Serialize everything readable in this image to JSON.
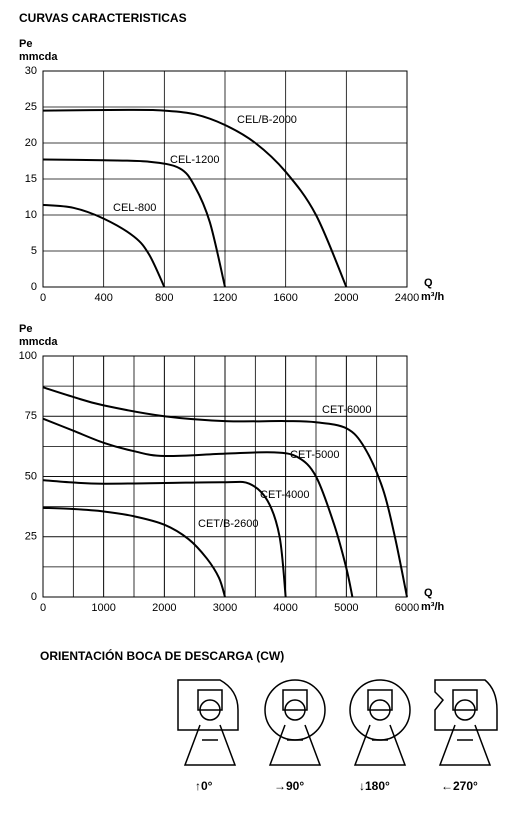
{
  "title": "CURVAS CARACTERISTICAS",
  "chart_data": [
    {
      "type": "line",
      "y_label": "Pe",
      "y_unit": "mmcda",
      "x_label": "Q",
      "x_unit": "m³/h",
      "xlim": [
        0,
        2400
      ],
      "ylim": [
        0,
        30
      ],
      "xticks": [
        0,
        400,
        800,
        1200,
        1600,
        2000,
        2400
      ],
      "yticks": [
        0,
        5,
        10,
        15,
        20,
        25,
        30
      ],
      "grid": true,
      "series": [
        {
          "name": "CEL/B-2000",
          "color": "#000000",
          "x": [
            0,
            600,
            800,
            1000,
            1200,
            1400,
            1600,
            1800,
            2000
          ],
          "values": [
            24.5,
            24.6,
            24.5,
            24,
            22.5,
            20,
            16,
            10,
            0
          ]
        },
        {
          "name": "CEL-1200",
          "color": "#000000",
          "x": [
            0,
            400,
            700,
            900,
            1000,
            1100,
            1200
          ],
          "values": [
            17.7,
            17.6,
            17.4,
            16.5,
            14,
            9,
            0
          ]
        },
        {
          "name": "CEL-800",
          "color": "#000000",
          "x": [
            0,
            200,
            400,
            600,
            700,
            800
          ],
          "values": [
            11.4,
            11,
            9.5,
            7,
            4.5,
            0
          ]
        }
      ]
    },
    {
      "type": "line",
      "y_label": "Pe",
      "y_unit": "mmcda",
      "x_label": "Q",
      "x_unit": "m³/h",
      "xlim": [
        0,
        6000
      ],
      "ylim": [
        0,
        100
      ],
      "xticks": [
        0,
        1000,
        2000,
        3000,
        4000,
        5000,
        6000
      ],
      "yticks": [
        0,
        25,
        50,
        75,
        100
      ],
      "grid": true,
      "xgrid_step": 500,
      "ygrid_step": 12.5,
      "series": [
        {
          "name": "CET-6000",
          "color": "#000000",
          "x": [
            0,
            500,
            1000,
            2000,
            3000,
            4000,
            4500,
            5000,
            5300,
            5600,
            5800,
            6000
          ],
          "values": [
            87,
            83,
            79.5,
            75,
            73,
            73,
            72.5,
            70,
            62,
            45,
            25,
            0
          ]
        },
        {
          "name": "CET-5000",
          "color": "#000000",
          "x": [
            0,
            500,
            1000,
            1500,
            2000,
            3000,
            3800,
            4200,
            4500,
            4800,
            5000,
            5100
          ],
          "values": [
            74,
            69,
            64,
            60.5,
            58.5,
            59.5,
            60,
            58,
            50,
            30,
            12,
            0
          ]
        },
        {
          "name": "CET-4000",
          "color": "#000000",
          "x": [
            0,
            500,
            1000,
            2000,
            3000,
            3400,
            3700,
            3900,
            4000
          ],
          "values": [
            48.5,
            47.5,
            47,
            47.3,
            47.6,
            47,
            40,
            25,
            0
          ]
        },
        {
          "name": "CET/B-2600",
          "color": "#000000",
          "x": [
            0,
            500,
            1000,
            1500,
            2000,
            2400,
            2700,
            2900,
            3000
          ],
          "values": [
            37,
            36.5,
            35.5,
            33.5,
            30,
            24,
            16,
            8,
            0
          ]
        }
      ]
    }
  ],
  "orientation": {
    "title": "ORIENTACIÓN BOCA DE DESCARGA (CW)",
    "labels": [
      "↑0°",
      "→90°",
      "↓180°",
      "←270°"
    ]
  }
}
